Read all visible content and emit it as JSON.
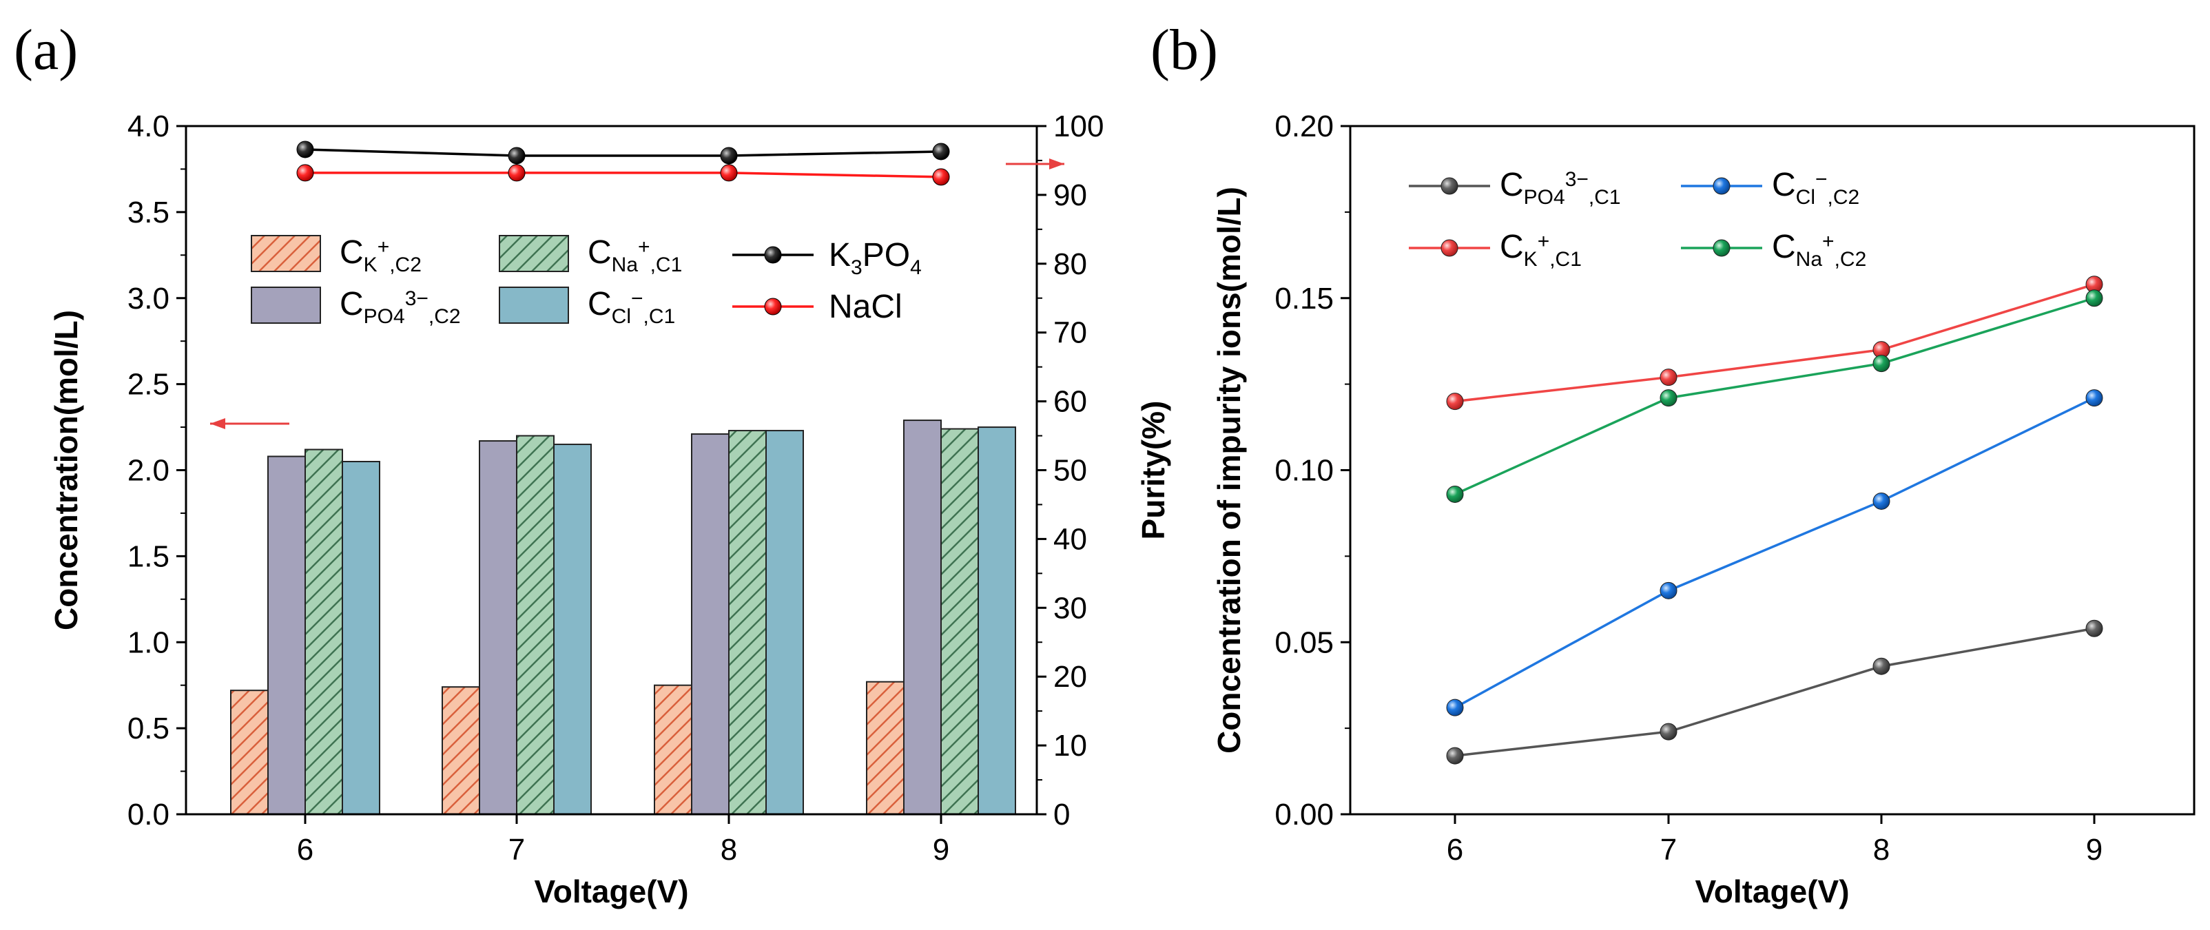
{
  "panels": {
    "a": "(a)",
    "b": "(b)"
  },
  "colors": {
    "k_c2": "#f8c4a8",
    "k_c2_hatch": "#d9603c",
    "po4_c2": "#a4a2bb",
    "na_c1": "#a9d2b5",
    "na_c1_hatch": "#3f7352",
    "cl_c1": "#86b8c8",
    "k3po4": "#000000",
    "nacl": "#ff1a1a",
    "arrow": "#e84040",
    "b_po4": "#555555",
    "b_cl": "#1f77e0",
    "b_k": "#f04545",
    "b_na": "#1aa35a"
  },
  "chart_data": [
    {
      "type": "bar",
      "title": "",
      "xlabel": "Voltage(V)",
      "ylabel": "Concentration(mol/L)",
      "y2label": "Purity(%)",
      "categories": [
        "6",
        "7",
        "8",
        "9"
      ],
      "ylim": [
        0,
        4.0
      ],
      "yticks": [
        "0.0",
        "0.5",
        "1.0",
        "1.5",
        "2.0",
        "2.5",
        "3.0",
        "3.5",
        "4.0"
      ],
      "y2lim": [
        0,
        100
      ],
      "y2ticks": [
        "0",
        "10",
        "20",
        "30",
        "40",
        "50",
        "60",
        "70",
        "80",
        "90",
        "100"
      ],
      "series": [
        {
          "name": "K+,C2",
          "label_main": "C",
          "label_sub": "K",
          "label_sup": "+",
          "label_tail": ",C2",
          "colorKey": "k_c2",
          "hatch": true,
          "values": [
            0.72,
            0.74,
            0.75,
            0.77
          ]
        },
        {
          "name": "PO4 3-,C2",
          "label_main": "C",
          "label_sub": "PO4",
          "label_sup": "3−",
          "label_tail": ",C2",
          "colorKey": "po4_c2",
          "hatch": false,
          "values": [
            2.08,
            2.17,
            2.21,
            2.29
          ]
        },
        {
          "name": "Na+,C1",
          "label_main": "C",
          "label_sub": "Na",
          "label_sup": "+",
          "label_tail": ",C1",
          "colorKey": "na_c1",
          "hatch": true,
          "values": [
            2.12,
            2.2,
            2.23,
            2.24
          ]
        },
        {
          "name": "Cl-,C1",
          "label_main": "C",
          "label_sub": "Cl",
          "label_sup": "−",
          "label_tail": ",C1",
          "colorKey": "cl_c1",
          "hatch": false,
          "values": [
            2.05,
            2.15,
            2.23,
            2.25
          ]
        }
      ],
      "line_series": [
        {
          "name": "K3PO4",
          "label_main": "K",
          "label_sub1": "3",
          "label_mid": "PO",
          "label_sub2": "4",
          "colorKey": "k3po4",
          "axis": "right",
          "values": [
            96.6,
            95.7,
            95.7,
            96.3
          ]
        },
        {
          "name": "NaCl",
          "label": "NaCl",
          "colorKey": "nacl",
          "axis": "right",
          "values": [
            93.2,
            93.2,
            93.2,
            92.6
          ]
        }
      ],
      "legend_position": "upper-left"
    },
    {
      "type": "line",
      "title": "",
      "xlabel": "Voltage(V)",
      "ylabel": "Concentration of impurity ions(mol/L)",
      "x": [
        "6",
        "7",
        "8",
        "9"
      ],
      "ylim": [
        0,
        0.2
      ],
      "yticks": [
        "0.00",
        "0.05",
        "0.10",
        "0.15",
        "0.20"
      ],
      "series": [
        {
          "name": "PO4 3-,C1",
          "label_main": "C",
          "label_sub": "PO4",
          "label_sup": "3−",
          "label_tail": ",C1",
          "colorKey": "b_po4",
          "values": [
            0.017,
            0.024,
            0.043,
            0.054
          ]
        },
        {
          "name": "Cl-,C2",
          "label_main": "C",
          "label_sub": "Cl",
          "label_sup": "−",
          "label_tail": ",C2",
          "colorKey": "b_cl",
          "values": [
            0.031,
            0.065,
            0.091,
            0.121
          ]
        },
        {
          "name": "K+,C1",
          "label_main": "C",
          "label_sub": "K",
          "label_sup": "+",
          "label_tail": ",C1",
          "colorKey": "b_k",
          "values": [
            0.12,
            0.127,
            0.135,
            0.154
          ]
        },
        {
          "name": "Na+,C2",
          "label_main": "C",
          "label_sub": "Na",
          "label_sup": "+",
          "label_tail": ",C2",
          "colorKey": "b_na",
          "values": [
            0.093,
            0.121,
            0.131,
            0.15
          ]
        }
      ],
      "legend_position": "upper-left"
    }
  ]
}
